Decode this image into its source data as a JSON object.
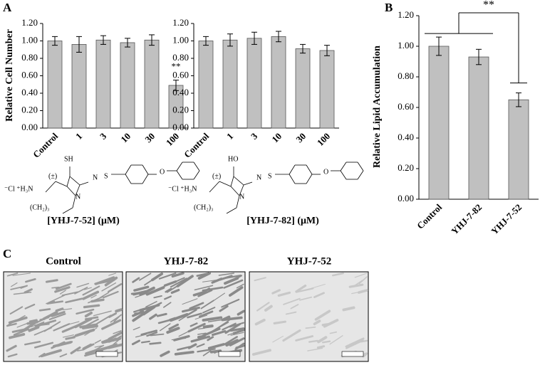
{
  "panels": [
    "A",
    "B",
    "C"
  ],
  "chart_data": [
    {
      "type": "bar",
      "y_label": "Relative Cell Number",
      "x_label": "[YHJ-7-52] (μM)",
      "categories": [
        "Control",
        "1",
        "3",
        "10",
        "30",
        "100"
      ],
      "values": [
        1.0,
        0.96,
        1.01,
        0.98,
        1.01,
        0.49
      ],
      "errors": [
        0.05,
        0.09,
        0.05,
        0.05,
        0.06,
        0.06
      ],
      "color": "#c0c0c0",
      "annotation": "**",
      "ylim": [
        0,
        1.2
      ],
      "yticks": [
        {
          "value": 0,
          "label": "0.00"
        },
        {
          "value": 0.2,
          "label": "0.20"
        },
        {
          "value": 0.4,
          "label": "0.40"
        },
        {
          "value": 0.6,
          "label": "0.60"
        },
        {
          "value": 0.8,
          "label": "0.80"
        },
        {
          "value": 1.0,
          "label": "1.00"
        },
        {
          "value": 1.2,
          "label": "1.20"
        }
      ]
    },
    {
      "type": "bar",
      "x_label": "[YHJ-7-82] (μM)",
      "categories": [
        "Control",
        "1",
        "3",
        "10",
        "30",
        "100"
      ],
      "values": [
        1.0,
        1.01,
        1.03,
        1.05,
        0.91,
        0.89
      ],
      "errors": [
        0.05,
        0.07,
        0.07,
        0.06,
        0.05,
        0.06
      ],
      "color": "#c0c0c0",
      "ylim": [
        0,
        1.2
      ],
      "yticks": [
        {
          "value": 0,
          "label": "0.00"
        },
        {
          "value": 0.2,
          "label": "0.20"
        },
        {
          "value": 0.4,
          "label": "0.40"
        },
        {
          "value": 0.6,
          "label": "0.60"
        },
        {
          "value": 0.8,
          "label": "0.80"
        },
        {
          "value": 1.0,
          "label": "1.00"
        },
        {
          "value": 1.2,
          "label": "1.20"
        }
      ]
    },
    {
      "type": "bar",
      "y_label": "Relative Lipid Accumulation",
      "categories": [
        "Control",
        "YHJ-7-82",
        "YHJ-7-52"
      ],
      "values": [
        1.0,
        0.93,
        0.65
      ],
      "errors": [
        0.06,
        0.05,
        0.045
      ],
      "color": "#c0c0c0",
      "annotation": "**",
      "ylim": [
        0,
        1.2
      ],
      "yticks": [
        {
          "value": 0,
          "label": "0.00"
        },
        {
          "value": 0.2,
          "label": "0.20"
        },
        {
          "value": 0.4,
          "label": "0.40"
        },
        {
          "value": 0.6,
          "label": "0.60"
        },
        {
          "value": 0.8,
          "label": "0.80"
        },
        {
          "value": 1.0,
          "label": "1.00"
        },
        {
          "value": 1.2,
          "label": "1.20"
        }
      ]
    }
  ],
  "structures": [
    {
      "labels": [
        "⁻Cl ⁺H₃N",
        "(±)",
        "SH",
        "N",
        "N",
        "S",
        "O",
        "(CH₂)₃"
      ]
    },
    {
      "labels": [
        "⁻Cl ⁺H₃N",
        "(±)",
        "HO",
        "N",
        "N",
        "S",
        "O",
        "(CH₂)₃"
      ]
    }
  ],
  "images": [
    "Control",
    "YHJ-7-82",
    "YHJ-7-52"
  ]
}
